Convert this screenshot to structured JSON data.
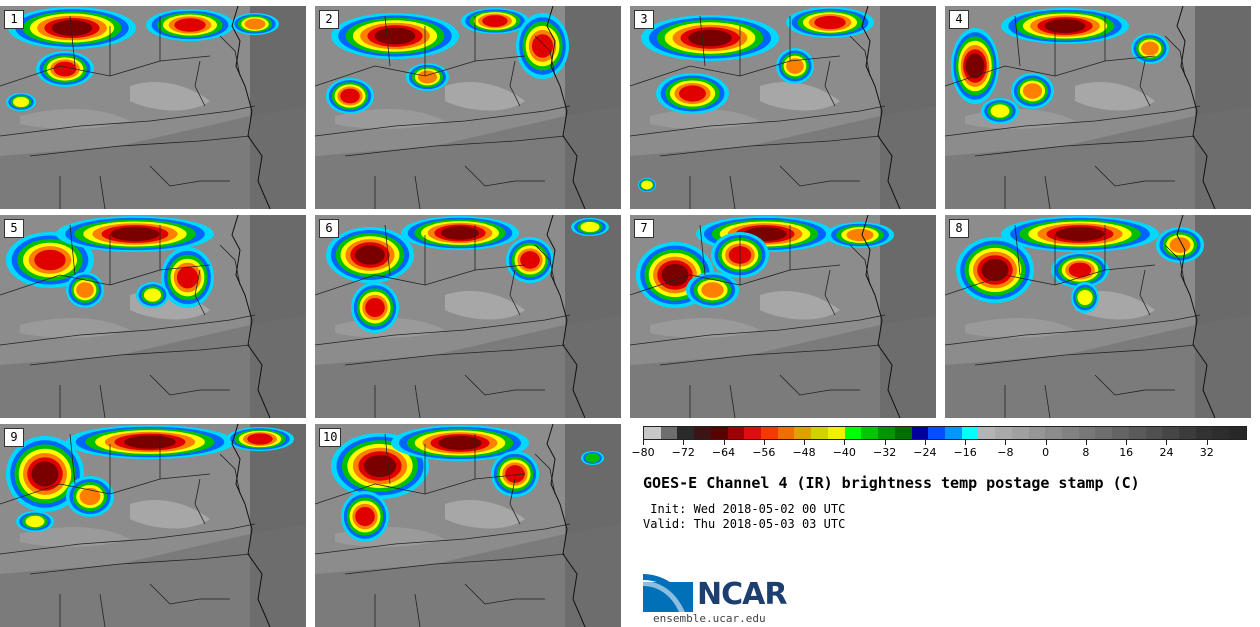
{
  "panels": [
    {
      "label": "1",
      "storms": [
        [
          12,
          4,
          120,
          36,
          0.95
        ],
        [
          150,
          6,
          80,
          26,
          0.9
        ],
        [
          40,
          48,
          50,
          30,
          0.8
        ],
        [
          235,
          10,
          40,
          16,
          0.7
        ],
        [
          10,
          90,
          22,
          12,
          0.5
        ]
      ]
    },
    {
      "label": "2",
      "storms": [
        [
          20,
          10,
          120,
          40,
          0.95
        ],
        [
          150,
          5,
          60,
          20,
          0.85
        ],
        [
          205,
          10,
          45,
          60,
          0.9
        ],
        [
          15,
          75,
          40,
          30,
          0.85
        ],
        [
          95,
          60,
          35,
          22,
          0.75
        ]
      ]
    },
    {
      "label": "3",
      "storms": [
        [
          15,
          12,
          130,
          40,
          0.95
        ],
        [
          160,
          4,
          80,
          25,
          0.9
        ],
        [
          30,
          70,
          65,
          35,
          0.85
        ],
        [
          150,
          45,
          30,
          30,
          0.7
        ],
        [
          12,
          175,
          10,
          8,
          0.5
        ]
      ]
    },
    {
      "label": "4",
      "storms": [
        [
          10,
          25,
          40,
          70,
          0.95
        ],
        [
          60,
          5,
          120,
          30,
          0.95
        ],
        [
          190,
          30,
          30,
          25,
          0.75
        ],
        [
          70,
          70,
          35,
          30,
          0.7
        ],
        [
          40,
          95,
          30,
          20,
          0.6
        ]
      ]
    },
    {
      "label": "5",
      "storms": [
        [
          10,
          20,
          80,
          50,
          0.9
        ],
        [
          60,
          4,
          150,
          30,
          0.95
        ],
        [
          165,
          35,
          45,
          55,
          0.8
        ],
        [
          70,
          60,
          30,
          30,
          0.65
        ],
        [
          140,
          70,
          25,
          20,
          0.6
        ]
      ]
    },
    {
      "label": "6",
      "storms": [
        [
          15,
          15,
          80,
          50,
          0.95
        ],
        [
          90,
          4,
          110,
          28,
          0.95
        ],
        [
          195,
          25,
          40,
          40,
          0.85
        ],
        [
          40,
          70,
          40,
          45,
          0.8
        ],
        [
          260,
          6,
          30,
          12,
          0.5
        ]
      ]
    },
    {
      "label": "7",
      "storms": [
        [
          10,
          30,
          70,
          60,
          0.95
        ],
        [
          70,
          4,
          130,
          30,
          0.95
        ],
        [
          200,
          10,
          60,
          20,
          0.7
        ],
        [
          60,
          60,
          45,
          30,
          0.75
        ],
        [
          85,
          20,
          50,
          40,
          0.85
        ]
      ]
    },
    {
      "label": "8",
      "storms": [
        [
          15,
          25,
          70,
          60,
          0.95
        ],
        [
          60,
          4,
          150,
          30,
          0.95
        ],
        [
          110,
          40,
          50,
          30,
          0.8
        ],
        [
          215,
          15,
          40,
          30,
          0.75
        ],
        [
          130,
          70,
          20,
          25,
          0.6
        ]
      ]
    },
    {
      "label": "9",
      "storms": [
        [
          10,
          15,
          70,
          70,
          0.95
        ],
        [
          70,
          4,
          160,
          28,
          0.95
        ],
        [
          230,
          6,
          60,
          18,
          0.85
        ],
        [
          70,
          55,
          40,
          35,
          0.75
        ],
        [
          20,
          90,
          30,
          15,
          0.6
        ]
      ]
    },
    {
      "label": "10",
      "storms": [
        [
          20,
          12,
          90,
          60,
          0.95
        ],
        [
          80,
          4,
          130,
          30,
          0.95
        ],
        [
          180,
          30,
          40,
          40,
          0.85
        ],
        [
          30,
          70,
          40,
          45,
          0.8
        ],
        [
          270,
          30,
          15,
          8,
          0.4
        ]
      ]
    }
  ],
  "colorbar": {
    "colors": [
      "#c8c8c8",
      "#6e6e6e",
      "#2a2a2a",
      "#3c1414",
      "#5a0000",
      "#a00000",
      "#d81010",
      "#f03c00",
      "#f06e00",
      "#e0a000",
      "#d2d200",
      "#f0f000",
      "#00ff00",
      "#00c800",
      "#009600",
      "#007000",
      "#0000a0",
      "#0050ff",
      "#0096ff",
      "#00ffff",
      "#b4b4b4",
      "#aaaaaa",
      "#a0a0a0",
      "#969696",
      "#8c8c8c",
      "#828282",
      "#787878",
      "#6e6e6e",
      "#646464",
      "#5a5a5a",
      "#505050",
      "#464646",
      "#3c3c3c",
      "#323232",
      "#2d2d2d",
      "#282828"
    ],
    "min": -80,
    "max": 40,
    "ticks": [
      -80,
      -72,
      -64,
      -56,
      -48,
      -40,
      -32,
      -24,
      -16,
      -8,
      0,
      8,
      16,
      24,
      32
    ]
  },
  "title": "GOES-E Channel 4 (IR) brightness temp postage stamp (C)",
  "init_text": " Init: Wed 2018-05-02 00 UTC",
  "valid_text": "Valid: Thu 2018-05-03 03 UTC",
  "logo": {
    "name": "ncar-logo",
    "wordmark": "NCAR",
    "primary_color": "#0070b8",
    "text_color": "#1c3f70"
  },
  "website": "ensemble.ucar.edu"
}
